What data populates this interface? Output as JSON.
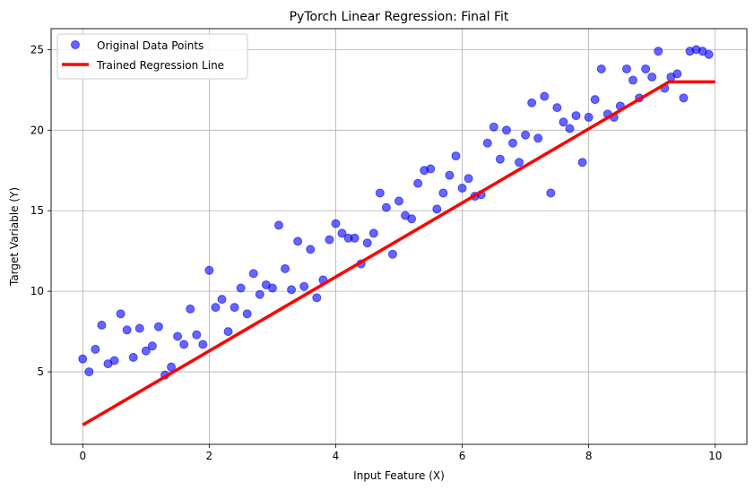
{
  "chart_data": {
    "type": "scatter",
    "title": "PyTorch Linear Regression: Final Fit",
    "xlabel": "Input Feature (X)",
    "ylabel": "Target Variable (Y)",
    "xlim": [
      -0.5,
      10.5
    ],
    "ylim": [
      0.5,
      26.3
    ],
    "x_ticks": [
      0,
      2,
      4,
      6,
      8,
      10
    ],
    "y_ticks": [
      5,
      10,
      15,
      20,
      25
    ],
    "grid": true,
    "legend_position": "upper-left",
    "series": [
      {
        "name": "Original Data Points",
        "kind": "scatter",
        "color": "#0000ff",
        "points": [
          [
            0.0,
            5.8
          ],
          [
            0.1,
            5.0
          ],
          [
            0.2,
            6.4
          ],
          [
            0.3,
            7.9
          ],
          [
            0.4,
            5.5
          ],
          [
            0.5,
            5.7
          ],
          [
            0.6,
            8.6
          ],
          [
            0.7,
            7.6
          ],
          [
            0.8,
            5.9
          ],
          [
            0.9,
            7.7
          ],
          [
            1.0,
            6.3
          ],
          [
            1.1,
            6.6
          ],
          [
            1.2,
            7.8
          ],
          [
            1.3,
            4.8
          ],
          [
            1.4,
            5.3
          ],
          [
            1.5,
            7.2
          ],
          [
            1.6,
            6.7
          ],
          [
            1.7,
            8.9
          ],
          [
            1.8,
            7.3
          ],
          [
            1.9,
            6.7
          ],
          [
            2.0,
            11.3
          ],
          [
            2.1,
            9.0
          ],
          [
            2.2,
            9.5
          ],
          [
            2.3,
            7.5
          ],
          [
            2.4,
            9.0
          ],
          [
            2.5,
            10.2
          ],
          [
            2.6,
            8.6
          ],
          [
            2.7,
            11.1
          ],
          [
            2.8,
            9.8
          ],
          [
            2.9,
            10.4
          ],
          [
            3.0,
            10.2
          ],
          [
            3.1,
            14.1
          ],
          [
            3.2,
            11.4
          ],
          [
            3.3,
            10.1
          ],
          [
            3.4,
            13.1
          ],
          [
            3.5,
            10.3
          ],
          [
            3.6,
            12.6
          ],
          [
            3.7,
            9.6
          ],
          [
            3.8,
            10.7
          ],
          [
            3.9,
            13.2
          ],
          [
            4.0,
            14.2
          ],
          [
            4.1,
            13.6
          ],
          [
            4.2,
            13.3
          ],
          [
            4.3,
            13.3
          ],
          [
            4.4,
            11.7
          ],
          [
            4.5,
            13.0
          ],
          [
            4.6,
            13.6
          ],
          [
            4.7,
            16.1
          ],
          [
            4.8,
            15.2
          ],
          [
            4.9,
            12.3
          ],
          [
            5.0,
            15.6
          ],
          [
            5.1,
            14.7
          ],
          [
            5.2,
            14.5
          ],
          [
            5.3,
            16.7
          ],
          [
            5.4,
            17.5
          ],
          [
            5.5,
            17.6
          ],
          [
            5.6,
            15.1
          ],
          [
            5.7,
            16.1
          ],
          [
            5.8,
            17.2
          ],
          [
            5.9,
            18.4
          ],
          [
            6.0,
            16.4
          ],
          [
            6.1,
            17.0
          ],
          [
            6.2,
            15.9
          ],
          [
            6.3,
            16.0
          ],
          [
            6.4,
            19.2
          ],
          [
            6.5,
            20.2
          ],
          [
            6.6,
            18.2
          ],
          [
            6.7,
            20.0
          ],
          [
            6.8,
            19.2
          ],
          [
            6.9,
            18.0
          ],
          [
            7.0,
            19.7
          ],
          [
            7.1,
            21.7
          ],
          [
            7.2,
            19.5
          ],
          [
            7.3,
            22.1
          ],
          [
            7.4,
            16.1
          ],
          [
            7.5,
            21.4
          ],
          [
            7.6,
            20.5
          ],
          [
            7.7,
            20.1
          ],
          [
            7.8,
            20.9
          ],
          [
            7.9,
            18.0
          ],
          [
            8.0,
            20.8
          ],
          [
            8.1,
            21.9
          ],
          [
            8.2,
            23.8
          ],
          [
            8.3,
            21.0
          ],
          [
            8.4,
            20.8
          ],
          [
            8.5,
            21.5
          ],
          [
            8.6,
            23.8
          ],
          [
            8.7,
            23.1
          ],
          [
            8.8,
            22.0
          ],
          [
            8.9,
            23.8
          ],
          [
            9.0,
            23.3
          ],
          [
            9.1,
            24.9
          ],
          [
            9.2,
            22.6
          ],
          [
            9.3,
            23.3
          ],
          [
            9.4,
            23.5
          ],
          [
            9.5,
            22.0
          ],
          [
            9.6,
            24.9
          ],
          [
            9.7,
            25.0
          ],
          [
            9.8,
            24.9
          ],
          [
            9.9,
            24.7
          ]
        ]
      },
      {
        "name": "Trained Regression Line",
        "kind": "line",
        "color": "#ff0000",
        "points": [
          [
            0.0,
            1.7
          ],
          [
            9.27,
            23.0
          ],
          [
            10.0,
            23.0
          ]
        ]
      }
    ]
  }
}
